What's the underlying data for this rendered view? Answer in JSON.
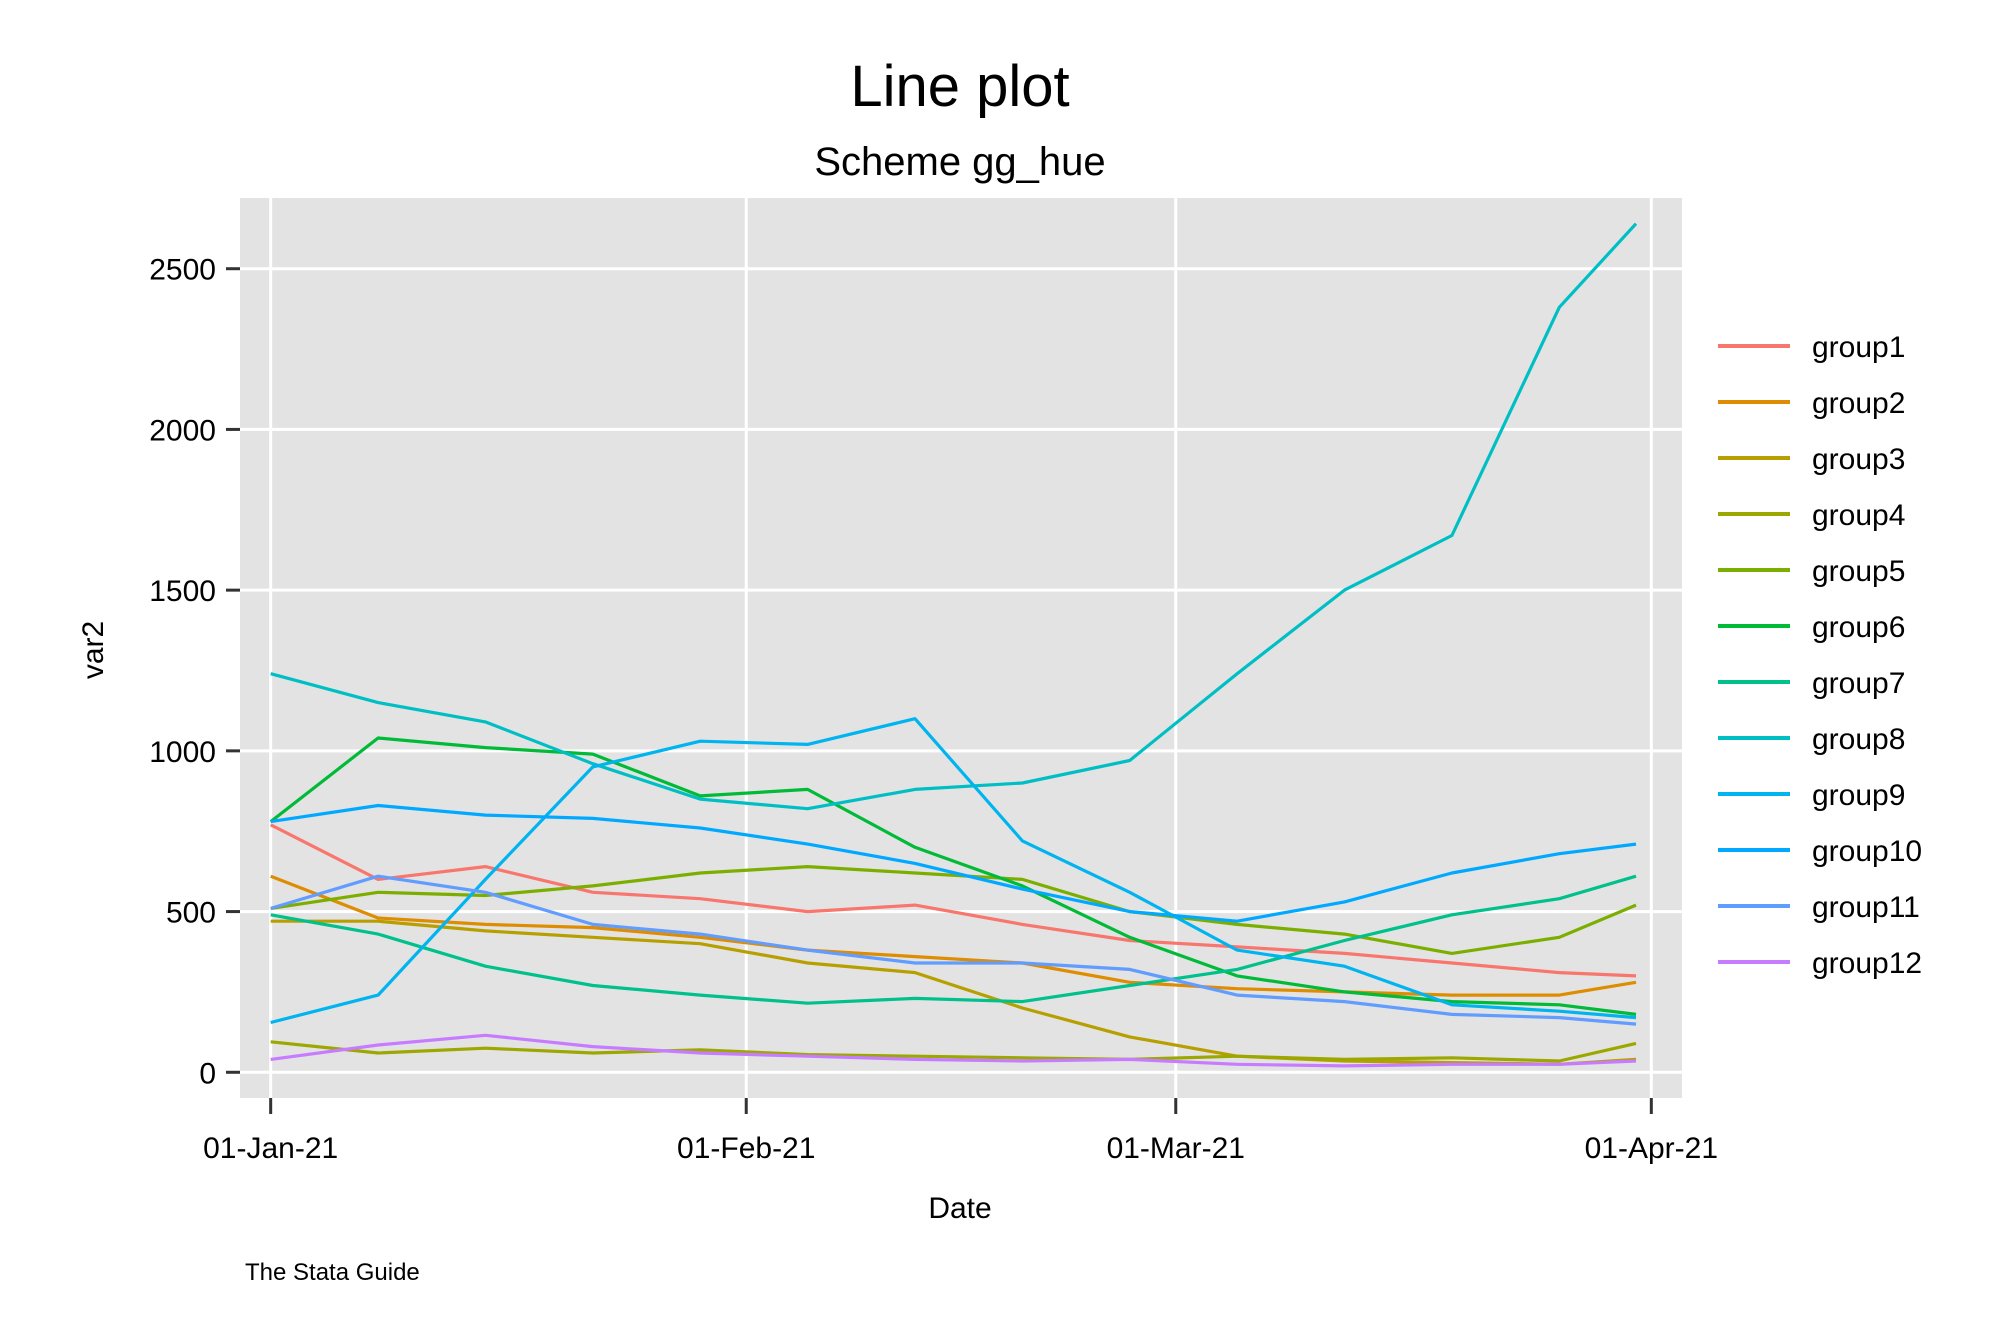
{
  "chart_data": {
    "type": "line",
    "title": "Line plot",
    "subtitle": "Scheme gg_hue",
    "xlabel": "Date",
    "ylabel": "var2",
    "note": "The Stata Guide",
    "x_ticks": [
      {
        "label": "01-Jan-21",
        "date": "2021-01-01"
      },
      {
        "label": "01-Feb-21",
        "date": "2021-02-01"
      },
      {
        "label": "01-Mar-21",
        "date": "2021-03-01"
      },
      {
        "label": "01-Apr-21",
        "date": "2021-04-01"
      }
    ],
    "y_ticks": [
      0,
      500,
      1000,
      1500,
      2000,
      2500
    ],
    "xlim": [
      "2020-12-30",
      "2021-04-03"
    ],
    "ylim": [
      -80,
      2720
    ],
    "grid": true,
    "legend_position": "right",
    "x_dates": [
      "2021-01-01",
      "2021-01-08",
      "2021-01-15",
      "2021-01-22",
      "2021-01-29",
      "2021-02-05",
      "2021-02-12",
      "2021-02-19",
      "2021-02-26",
      "2021-03-05",
      "2021-03-12",
      "2021-03-19",
      "2021-03-26",
      "2021-03-31"
    ],
    "series": [
      {
        "name": "group1",
        "color": "#F8766D",
        "values": [
          770,
          600,
          640,
          560,
          540,
          500,
          520,
          460,
          410,
          390,
          370,
          340,
          310,
          300
        ]
      },
      {
        "name": "group2",
        "color": "#DE8C00",
        "values": [
          610,
          480,
          460,
          450,
          420,
          380,
          360,
          340,
          280,
          260,
          250,
          240,
          240,
          280
        ]
      },
      {
        "name": "group3",
        "color": "#B79F00",
        "values": [
          470,
          470,
          440,
          420,
          400,
          340,
          310,
          200,
          110,
          50,
          35,
          30,
          25,
          40
        ]
      },
      {
        "name": "group4",
        "color": "#9CA700",
        "values": [
          95,
          60,
          75,
          60,
          70,
          55,
          50,
          45,
          40,
          50,
          40,
          45,
          35,
          90
        ]
      },
      {
        "name": "group5",
        "color": "#7CAE00",
        "values": [
          510,
          560,
          550,
          580,
          620,
          640,
          620,
          600,
          500,
          460,
          430,
          370,
          420,
          520
        ]
      },
      {
        "name": "group6",
        "color": "#00BA38",
        "values": [
          780,
          1040,
          1010,
          990,
          860,
          880,
          700,
          580,
          420,
          300,
          250,
          220,
          210,
          180
        ]
      },
      {
        "name": "group7",
        "color": "#00C08B",
        "values": [
          490,
          430,
          330,
          270,
          240,
          215,
          230,
          220,
          270,
          320,
          410,
          490,
          540,
          610
        ]
      },
      {
        "name": "group8",
        "color": "#00BFC4",
        "values": [
          1240,
          1150,
          1090,
          960,
          850,
          820,
          880,
          900,
          970,
          1240,
          1500,
          1670,
          2380,
          2640
        ]
      },
      {
        "name": "group9",
        "color": "#00B4F0",
        "values": [
          155,
          240,
          600,
          950,
          1030,
          1020,
          1100,
          720,
          560,
          380,
          330,
          210,
          190,
          170
        ]
      },
      {
        "name": "group10",
        "color": "#00A9FF",
        "values": [
          780,
          830,
          800,
          790,
          760,
          710,
          650,
          570,
          500,
          470,
          530,
          620,
          680,
          710
        ]
      },
      {
        "name": "group11",
        "color": "#619CFF",
        "values": [
          510,
          610,
          560,
          460,
          430,
          380,
          340,
          340,
          320,
          240,
          220,
          180,
          170,
          150
        ]
      },
      {
        "name": "group12",
        "color": "#C77CFF",
        "values": [
          40,
          85,
          115,
          80,
          60,
          50,
          40,
          35,
          40,
          25,
          20,
          25,
          25,
          35
        ]
      }
    ]
  }
}
